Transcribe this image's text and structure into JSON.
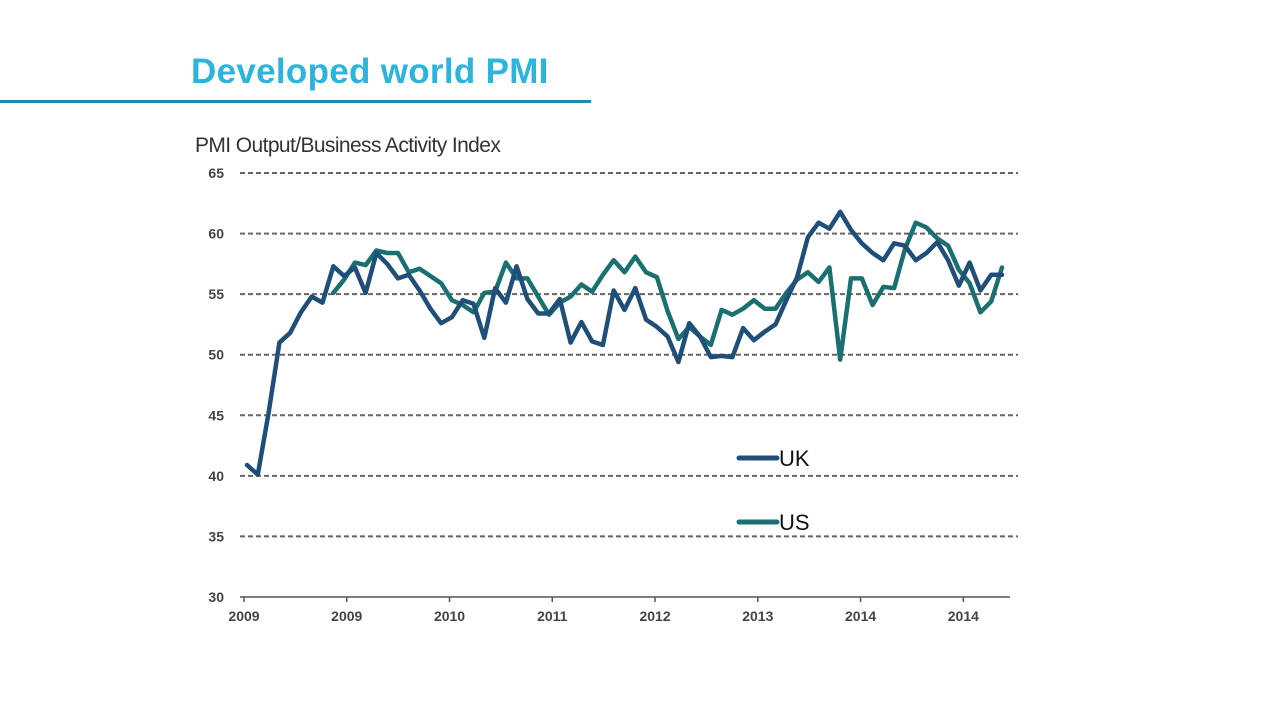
{
  "title": "Developed world PMI",
  "chart_data": {
    "type": "line",
    "title": "",
    "ylabel": "PMI Output/Business Activity Index",
    "xlabel": "",
    "ylim": [
      30,
      65
    ],
    "yticks": [
      30,
      35,
      40,
      45,
      50,
      55,
      60,
      65
    ],
    "xtick_labels": [
      "2009",
      "2009",
      "2010",
      "2011",
      "2012",
      "2013",
      "2014",
      "2014"
    ],
    "grid": "horizontal dashed",
    "legend": "center-right",
    "series": [
      {
        "name": "UK",
        "color": "#1f4e79",
        "start_index": 0,
        "values": [
          40.9,
          40.1,
          45.2,
          51.0,
          51.8,
          53.5,
          54.8,
          54.3,
          57.3,
          56.5,
          57.2,
          55.1,
          58.4,
          57.5,
          56.3,
          56.6,
          55.3,
          53.8,
          52.6,
          53.1,
          54.5,
          54.2,
          51.4,
          55.5,
          54.3,
          57.3,
          54.6,
          53.4,
          53.4,
          54.6,
          51.0,
          52.7,
          51.1,
          50.8,
          55.3,
          53.7,
          55.5,
          52.9,
          52.3,
          51.5,
          49.4,
          52.6,
          51.5,
          49.8,
          49.9,
          49.8,
          52.2,
          51.2,
          51.9,
          52.5,
          54.5,
          56.4,
          59.7,
          60.9,
          60.4,
          61.8,
          60.3,
          59.2,
          58.4,
          57.8,
          59.2,
          59.0,
          57.8,
          58.4,
          59.3,
          57.8,
          55.7,
          57.6,
          55.3,
          56.6,
          56.6
        ]
      },
      {
        "name": "US",
        "color": "#1a7070",
        "start_index": 8,
        "values": [
          55.1,
          56.2,
          57.6,
          57.4,
          58.6,
          58.4,
          58.4,
          56.8,
          57.1,
          56.5,
          55.9,
          54.5,
          54.1,
          53.5,
          55.1,
          55.2,
          57.6,
          56.3,
          56.3,
          54.8,
          53.3,
          54.3,
          54.8,
          55.8,
          55.2,
          56.6,
          57.8,
          56.8,
          58.1,
          56.8,
          56.4,
          53.6,
          51.3,
          52.3,
          51.5,
          50.8,
          53.7,
          53.3,
          53.8,
          54.5,
          53.8,
          53.8,
          55.1,
          56.2,
          56.8,
          56.0,
          57.2,
          49.6,
          56.3,
          56.3,
          54.1,
          55.6,
          55.5,
          58.7,
          60.9,
          60.5,
          59.6,
          59.0,
          57.0,
          55.9,
          53.5,
          54.4,
          57.2
        ]
      }
    ]
  }
}
